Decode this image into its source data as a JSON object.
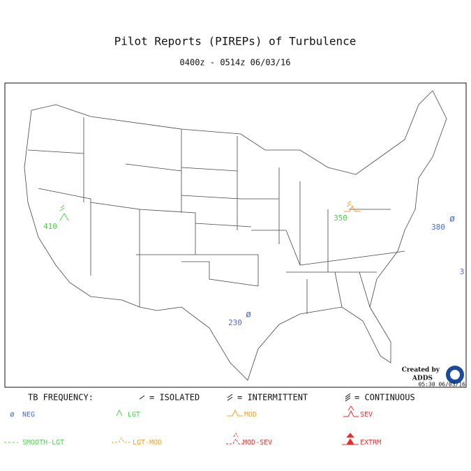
{
  "header": {
    "title": "Pilot Reports (PIREPs) of Turbulence",
    "subtitle": "0400z - 0514z  06/03/16"
  },
  "reports": [
    410,
    350,
    380,
    230,
    3
  ],
  "credit": {
    "line1": "Created by",
    "line2": "ADDS",
    "timestamp": "05:30 06/03/16"
  },
  "legend": {
    "title": "TB FREQUENCY:",
    "frequency": [
      "= ISOLATED",
      "= INTERMITTENT",
      "= CONTINUOUS"
    ],
    "intensity": [
      "NEG",
      "LGT",
      "MOD",
      "SEV",
      "SMOOTH-LGT",
      "LGT-MOD",
      "MOD-SEV",
      "EXTRM"
    ]
  }
}
